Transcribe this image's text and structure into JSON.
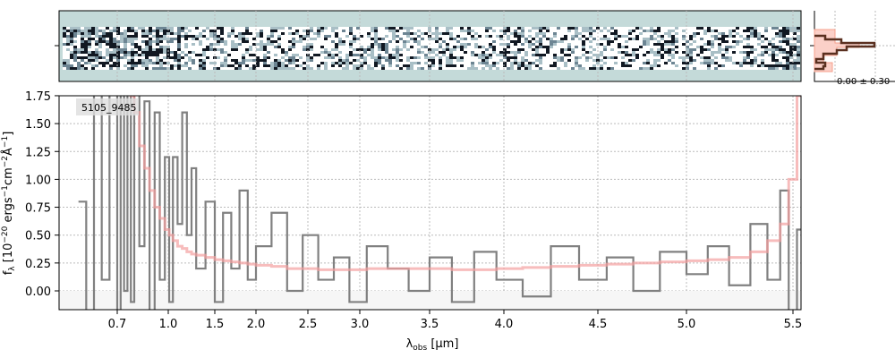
{
  "chart_data": {
    "type": "line",
    "object_label": "5105_9485",
    "xlabel": "λobs [μm]",
    "ylabel": "fλ [10^-20 ergs^-1cm^-2Å^-1]",
    "xticks": [
      "0.7",
      "1.0",
      "1.5",
      "2.0",
      "2.5",
      "3.0",
      "3.5",
      "4.0",
      "4.5",
      "5.0",
      "5.5"
    ],
    "yticks": [
      "0.00",
      "0.25",
      "0.50",
      "0.75",
      "1.00",
      "1.25",
      "1.50",
      "1.75"
    ],
    "ylim": [
      -0.17,
      1.75
    ],
    "grid": true,
    "hist_label": "0.00 ± 0.30",
    "x": [
      0.6,
      0.62,
      0.64,
      0.66,
      0.68,
      0.7,
      0.72,
      0.74,
      0.76,
      0.78,
      0.8,
      0.83,
      0.86,
      0.89,
      0.92,
      0.95,
      0.98,
      1.01,
      1.05,
      1.1,
      1.15,
      1.2,
      1.25,
      1.3,
      1.4,
      1.5,
      1.6,
      1.7,
      1.8,
      1.9,
      2.0,
      2.15,
      2.3,
      2.45,
      2.6,
      2.75,
      2.9,
      3.05,
      3.2,
      3.35,
      3.5,
      3.65,
      3.8,
      3.95,
      4.1,
      4.25,
      4.4,
      4.55,
      4.7,
      4.85,
      5.0,
      5.1,
      5.2,
      5.3,
      5.38,
      5.44,
      5.48,
      5.51
    ],
    "series": [
      {
        "name": "data",
        "color": "#808080",
        "values": [
          0.8,
          -0.2,
          1.8,
          0.1,
          1.8,
          -0.2,
          1.8,
          0.0,
          1.9,
          -0.1,
          1.8,
          0.4,
          1.7,
          -0.2,
          1.6,
          0.1,
          1.2,
          -0.1,
          1.2,
          0.6,
          1.6,
          0.5,
          1.1,
          0.2,
          0.8,
          -0.1,
          0.7,
          0.2,
          0.9,
          0.1,
          0.4,
          0.7,
          0.0,
          0.5,
          0.1,
          0.3,
          -0.1,
          0.4,
          0.2,
          0.0,
          0.3,
          -0.1,
          0.35,
          0.1,
          -0.05,
          0.4,
          0.1,
          0.3,
          0.0,
          0.35,
          0.15,
          0.4,
          0.05,
          0.6,
          0.1,
          0.9,
          -0.2,
          0.55
        ]
      },
      {
        "name": "model",
        "color": "#f4a0a0",
        "values": [
          null,
          null,
          null,
          null,
          null,
          null,
          null,
          null,
          1.9,
          1.75,
          1.6,
          1.3,
          1.1,
          0.9,
          0.75,
          0.65,
          0.55,
          0.5,
          0.45,
          0.4,
          0.38,
          0.35,
          0.33,
          0.32,
          0.3,
          0.28,
          0.27,
          0.26,
          0.25,
          0.24,
          0.23,
          0.22,
          0.2,
          0.2,
          0.19,
          0.19,
          0.19,
          0.2,
          0.2,
          0.2,
          0.2,
          0.19,
          0.19,
          0.2,
          0.21,
          0.22,
          0.23,
          0.24,
          0.25,
          0.26,
          0.27,
          0.28,
          0.3,
          0.35,
          0.45,
          0.6,
          1.0,
          1.75
        ]
      }
    ]
  }
}
